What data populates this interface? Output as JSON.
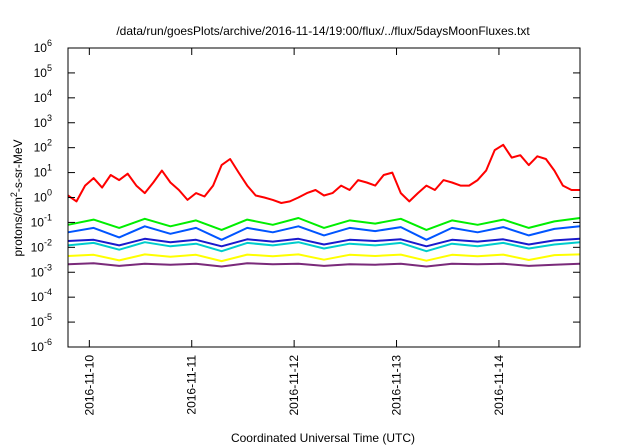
{
  "chart_data": {
    "type": "line",
    "title": "/data/run/goesPlots/archive/2016-11-14/19:00/flux/../flux/5daysMoonFluxes.txt",
    "xlabel": "Coordinated Universal Time (UTC)",
    "ylabel": "protons/cm²-s-sr-MeV",
    "yscale": "log",
    "ylim": [
      1e-06,
      1000000.0
    ],
    "xlim": [
      "2016-11-09T19:00",
      "2016-11-14T19:00"
    ],
    "grid": false,
    "legend": "none",
    "y_ticks": [
      {
        "value": 1e-06,
        "base": "10",
        "exp": "-6"
      },
      {
        "value": 1e-05,
        "base": "10",
        "exp": "-5"
      },
      {
        "value": 0.0001,
        "base": "10",
        "exp": "-4"
      },
      {
        "value": 0.001,
        "base": "10",
        "exp": "-3"
      },
      {
        "value": 0.01,
        "base": "10",
        "exp": "-2"
      },
      {
        "value": 0.1,
        "base": "10",
        "exp": "-1"
      },
      {
        "value": 1.0,
        "base": "10",
        "exp": "0"
      },
      {
        "value": 10.0,
        "base": "10",
        "exp": "1"
      },
      {
        "value": 100.0,
        "base": "10",
        "exp": "2"
      },
      {
        "value": 1000.0,
        "base": "10",
        "exp": "3"
      },
      {
        "value": 10000.0,
        "base": "10",
        "exp": "4"
      },
      {
        "value": 100000.0,
        "base": "10",
        "exp": "5"
      },
      {
        "value": 1000000.0,
        "base": "10",
        "exp": "6"
      }
    ],
    "x_ticks": [
      {
        "value": "2016-11-10T00:00",
        "label": "2016-11-10"
      },
      {
        "value": "2016-11-11T00:00",
        "label": "2016-11-11"
      },
      {
        "value": "2016-11-12T00:00",
        "label": "2016-11-12"
      },
      {
        "value": "2016-11-13T00:00",
        "label": "2016-11-13"
      },
      {
        "value": "2016-11-14T00:00",
        "label": "2016-11-14"
      }
    ],
    "series": [
      {
        "color": "#ff0000",
        "x": [
          "2016-11-09T19:00",
          "2016-11-09T21:00",
          "2016-11-09T23:00",
          "2016-11-10T01:00",
          "2016-11-10T03:00",
          "2016-11-10T05:00",
          "2016-11-10T07:00",
          "2016-11-10T09:00",
          "2016-11-10T11:00",
          "2016-11-10T13:00",
          "2016-11-10T15:00",
          "2016-11-10T17:00",
          "2016-11-10T19:00",
          "2016-11-10T21:00",
          "2016-11-10T23:00",
          "2016-11-11T01:00",
          "2016-11-11T03:00",
          "2016-11-11T05:00",
          "2016-11-11T07:00",
          "2016-11-11T09:00",
          "2016-11-11T11:00",
          "2016-11-11T13:00",
          "2016-11-11T15:00",
          "2016-11-11T17:00",
          "2016-11-11T19:00",
          "2016-11-11T21:00",
          "2016-11-11T23:00",
          "2016-11-12T01:00",
          "2016-11-12T03:00",
          "2016-11-12T05:00",
          "2016-11-12T07:00",
          "2016-11-12T09:00",
          "2016-11-12T11:00",
          "2016-11-12T13:00",
          "2016-11-12T15:00",
          "2016-11-12T17:00",
          "2016-11-12T19:00",
          "2016-11-12T21:00",
          "2016-11-12T23:00",
          "2016-11-13T01:00",
          "2016-11-13T03:00",
          "2016-11-13T05:00",
          "2016-11-13T07:00",
          "2016-11-13T09:00",
          "2016-11-13T11:00",
          "2016-11-13T13:00",
          "2016-11-13T15:00",
          "2016-11-13T17:00",
          "2016-11-13T19:00",
          "2016-11-13T21:00",
          "2016-11-13T23:00",
          "2016-11-14T01:00",
          "2016-11-14T03:00",
          "2016-11-14T05:00",
          "2016-11-14T07:00",
          "2016-11-14T09:00",
          "2016-11-14T11:00",
          "2016-11-14T13:00",
          "2016-11-14T15:00",
          "2016-11-14T17:00",
          "2016-11-14T19:00"
        ],
        "values": [
          1.2,
          0.7,
          3,
          6,
          2.5,
          8,
          5,
          9,
          3,
          1.5,
          4,
          12,
          4,
          2,
          0.8,
          1.5,
          1.1,
          3,
          20,
          35,
          10,
          3,
          1.2,
          1,
          0.8,
          0.6,
          0.7,
          1,
          1.5,
          2,
          1.2,
          1.5,
          3,
          2,
          5,
          4,
          3,
          8,
          10,
          1.5,
          0.7,
          1.5,
          3,
          2,
          5,
          4,
          3,
          3,
          5,
          12,
          80,
          130,
          40,
          50,
          20,
          45,
          35,
          12,
          3,
          2,
          2
        ]
      },
      {
        "color": "#00ee00",
        "x": [
          "2016-11-09T19:00",
          "2016-11-10T01:00",
          "2016-11-10T07:00",
          "2016-11-10T13:00",
          "2016-11-10T19:00",
          "2016-11-11T01:00",
          "2016-11-11T07:00",
          "2016-11-11T13:00",
          "2016-11-11T19:00",
          "2016-11-12T01:00",
          "2016-11-12T07:00",
          "2016-11-12T13:00",
          "2016-11-12T19:00",
          "2016-11-13T01:00",
          "2016-11-13T07:00",
          "2016-11-13T13:00",
          "2016-11-13T19:00",
          "2016-11-14T01:00",
          "2016-11-14T07:00",
          "2016-11-14T13:00",
          "2016-11-14T19:00"
        ],
        "values": [
          0.08,
          0.13,
          0.06,
          0.14,
          0.07,
          0.12,
          0.05,
          0.13,
          0.08,
          0.15,
          0.06,
          0.12,
          0.09,
          0.14,
          0.05,
          0.12,
          0.08,
          0.13,
          0.06,
          0.11,
          0.15
        ]
      },
      {
        "color": "#0055ff",
        "x": [
          "2016-11-09T19:00",
          "2016-11-10T01:00",
          "2016-11-10T07:00",
          "2016-11-10T13:00",
          "2016-11-10T19:00",
          "2016-11-11T01:00",
          "2016-11-11T07:00",
          "2016-11-11T13:00",
          "2016-11-11T19:00",
          "2016-11-12T01:00",
          "2016-11-12T07:00",
          "2016-11-12T13:00",
          "2016-11-12T19:00",
          "2016-11-13T01:00",
          "2016-11-13T07:00",
          "2016-11-13T13:00",
          "2016-11-13T19:00",
          "2016-11-14T01:00",
          "2016-11-14T07:00",
          "2016-11-14T13:00",
          "2016-11-14T19:00"
        ],
        "values": [
          0.04,
          0.06,
          0.025,
          0.07,
          0.035,
          0.06,
          0.02,
          0.06,
          0.04,
          0.07,
          0.03,
          0.06,
          0.045,
          0.065,
          0.02,
          0.06,
          0.04,
          0.065,
          0.03,
          0.055,
          0.07
        ]
      },
      {
        "color": "#00cccc",
        "x": [
          "2016-11-09T19:00",
          "2016-11-10T01:00",
          "2016-11-10T07:00",
          "2016-11-10T13:00",
          "2016-11-10T19:00",
          "2016-11-11T01:00",
          "2016-11-11T07:00",
          "2016-11-11T13:00",
          "2016-11-11T19:00",
          "2016-11-12T01:00",
          "2016-11-12T07:00",
          "2016-11-12T13:00",
          "2016-11-12T19:00",
          "2016-11-13T01:00",
          "2016-11-13T07:00",
          "2016-11-13T13:00",
          "2016-11-13T19:00",
          "2016-11-14T01:00",
          "2016-11-14T07:00",
          "2016-11-14T13:00",
          "2016-11-14T19:00"
        ],
        "values": [
          0.012,
          0.015,
          0.008,
          0.016,
          0.011,
          0.014,
          0.007,
          0.015,
          0.012,
          0.016,
          0.009,
          0.014,
          0.012,
          0.015,
          0.007,
          0.014,
          0.011,
          0.015,
          0.009,
          0.013,
          0.016
        ]
      },
      {
        "color": "#1a1acc",
        "x": [
          "2016-11-09T19:00",
          "2016-11-10T01:00",
          "2016-11-10T07:00",
          "2016-11-10T13:00",
          "2016-11-10T19:00",
          "2016-11-11T01:00",
          "2016-11-11T07:00",
          "2016-11-11T13:00",
          "2016-11-11T19:00",
          "2016-11-12T01:00",
          "2016-11-12T07:00",
          "2016-11-12T13:00",
          "2016-11-12T19:00",
          "2016-11-13T01:00",
          "2016-11-13T07:00",
          "2016-11-13T13:00",
          "2016-11-13T19:00",
          "2016-11-14T01:00",
          "2016-11-14T07:00",
          "2016-11-14T13:00",
          "2016-11-14T19:00"
        ],
        "values": [
          0.018,
          0.02,
          0.012,
          0.022,
          0.016,
          0.02,
          0.011,
          0.021,
          0.017,
          0.022,
          0.013,
          0.02,
          0.018,
          0.021,
          0.011,
          0.02,
          0.017,
          0.021,
          0.013,
          0.019,
          0.022
        ]
      },
      {
        "color": "#ffff00",
        "x": [
          "2016-11-09T19:00",
          "2016-11-10T01:00",
          "2016-11-10T07:00",
          "2016-11-10T13:00",
          "2016-11-10T19:00",
          "2016-11-11T01:00",
          "2016-11-11T07:00",
          "2016-11-11T13:00",
          "2016-11-11T19:00",
          "2016-11-12T01:00",
          "2016-11-12T07:00",
          "2016-11-12T13:00",
          "2016-11-12T19:00",
          "2016-11-13T01:00",
          "2016-11-13T07:00",
          "2016-11-13T13:00",
          "2016-11-13T19:00",
          "2016-11-14T01:00",
          "2016-11-14T07:00",
          "2016-11-14T13:00",
          "2016-11-14T19:00"
        ],
        "values": [
          0.0045,
          0.005,
          0.003,
          0.0052,
          0.0042,
          0.005,
          0.0028,
          0.0051,
          0.0044,
          0.0052,
          0.0032,
          0.005,
          0.0045,
          0.0051,
          0.0029,
          0.005,
          0.0044,
          0.0051,
          0.0031,
          0.0049,
          0.0052
        ]
      },
      {
        "color": "#7a2a7a",
        "x": [
          "2016-11-09T19:00",
          "2016-11-10T01:00",
          "2016-11-10T07:00",
          "2016-11-10T13:00",
          "2016-11-10T19:00",
          "2016-11-11T01:00",
          "2016-11-11T07:00",
          "2016-11-11T13:00",
          "2016-11-11T19:00",
          "2016-11-12T01:00",
          "2016-11-12T07:00",
          "2016-11-12T13:00",
          "2016-11-12T19:00",
          "2016-11-13T01:00",
          "2016-11-13T07:00",
          "2016-11-13T13:00",
          "2016-11-13T19:00",
          "2016-11-14T01:00",
          "2016-11-14T07:00",
          "2016-11-14T13:00",
          "2016-11-14T19:00"
        ],
        "values": [
          0.0021,
          0.0023,
          0.0018,
          0.0022,
          0.002,
          0.0022,
          0.0017,
          0.0023,
          0.0021,
          0.0022,
          0.0018,
          0.0021,
          0.002,
          0.0022,
          0.0017,
          0.0022,
          0.0021,
          0.0022,
          0.0018,
          0.002,
          0.0022
        ]
      }
    ]
  }
}
